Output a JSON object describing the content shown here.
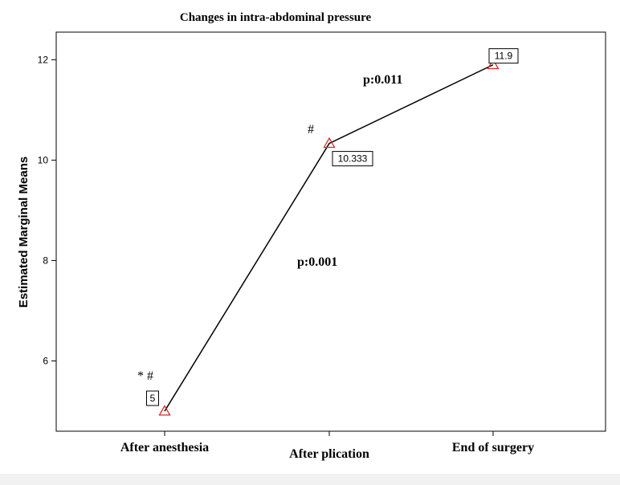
{
  "chart_data": {
    "type": "line",
    "title": "Changes in intra-abdominal pressure",
    "xlabel": "",
    "ylabel": "Estimated Marginal Means",
    "categories": [
      "After anesthesia",
      "After plication",
      "End of surgery"
    ],
    "series": [
      {
        "values": [
          5,
          10.333,
          11.9
        ]
      }
    ],
    "data_labels": [
      "5",
      "10.333",
      "11.9"
    ],
    "yticks": [
      6,
      8,
      10,
      12
    ],
    "ylim": [
      4.6,
      12.55
    ],
    "grid": false,
    "legend": "none",
    "annotations": {
      "markers": [
        "* #",
        "#"
      ],
      "p_values": [
        "p:0.001",
        "p:0.011"
      ]
    },
    "colors": {
      "line": "#000000",
      "marker": "#d42a2a",
      "text": "#000000"
    }
  }
}
